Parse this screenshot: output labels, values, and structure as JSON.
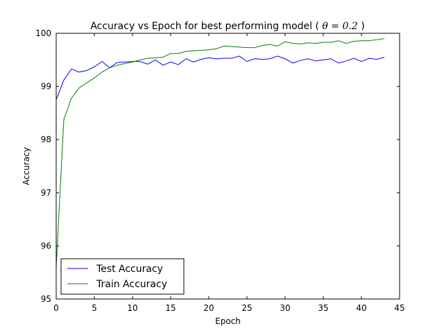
{
  "chart_data": {
    "type": "line",
    "title": "Accuracy vs Epoch for best performing model ( θ = 0.2)",
    "title_prefix": "Accuracy vs Epoch for best performing model (",
    "title_math": "θ = 0.2",
    "title_suffix": ")",
    "xlabel": "Epoch",
    "ylabel": "Accuracy",
    "xlim": [
      0,
      45
    ],
    "ylim": [
      95,
      100
    ],
    "xticks": [
      0,
      5,
      10,
      15,
      20,
      25,
      30,
      35,
      40,
      45
    ],
    "yticks": [
      95,
      96,
      97,
      98,
      99,
      100
    ],
    "grid": false,
    "legend_position": "lower-left",
    "x": [
      0,
      1,
      2,
      3,
      4,
      5,
      6,
      7,
      8,
      9,
      10,
      11,
      12,
      13,
      14,
      15,
      16,
      17,
      18,
      19,
      20,
      21,
      22,
      23,
      24,
      25,
      26,
      27,
      28,
      29,
      30,
      31,
      32,
      33,
      34,
      35,
      36,
      37,
      38,
      39,
      40,
      41,
      42,
      43
    ],
    "series": [
      {
        "name": "Test Accuracy",
        "color": "#0000ff",
        "values": [
          98.75,
          99.12,
          99.33,
          99.27,
          99.3,
          99.37,
          99.47,
          99.35,
          99.45,
          99.46,
          99.47,
          99.47,
          99.42,
          99.5,
          99.4,
          99.46,
          99.41,
          99.52,
          99.46,
          99.51,
          99.54,
          99.52,
          99.53,
          99.53,
          99.57,
          99.47,
          99.52,
          99.51,
          99.52,
          99.57,
          99.52,
          99.44,
          99.49,
          99.52,
          99.48,
          99.5,
          99.52,
          99.44,
          99.48,
          99.53,
          99.47,
          99.53,
          99.51,
          99.55
        ]
      },
      {
        "name": "Train Accuracy",
        "color": "#008000",
        "values": [
          95.6,
          98.38,
          98.78,
          98.97,
          99.07,
          99.16,
          99.27,
          99.35,
          99.4,
          99.43,
          99.46,
          99.5,
          99.53,
          99.54,
          99.55,
          99.62,
          99.62,
          99.66,
          99.67,
          99.68,
          99.69,
          99.71,
          99.76,
          99.75,
          99.74,
          99.73,
          99.73,
          99.77,
          99.79,
          99.76,
          99.84,
          99.81,
          99.8,
          99.82,
          99.81,
          99.83,
          99.83,
          99.86,
          99.81,
          99.85,
          99.86,
          99.86,
          99.88,
          99.9
        ]
      }
    ]
  }
}
